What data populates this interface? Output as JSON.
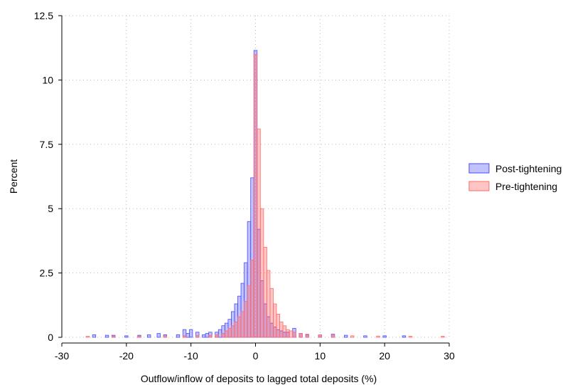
{
  "chart_data": {
    "type": "histogram",
    "xlabel": "Outflow/inflow of deposits to lagged total deposits (%)",
    "ylabel": "Percent",
    "xlim": [
      -30,
      30
    ],
    "ylim": [
      0,
      12.5
    ],
    "x_ticks": [
      "-30",
      "-20",
      "-10",
      "0",
      "10",
      "20",
      "30"
    ],
    "y_ticks": [
      "0",
      "2.5",
      "5",
      "7.5",
      "10",
      "12.5"
    ],
    "grid": true,
    "legend": "right",
    "bin_width": 0.5,
    "series": [
      {
        "name": "Post-tightening",
        "fill": "rgba(80,80,255,0.35)",
        "stroke": "#4a4aff",
        "bins": [
          {
            "x": -25.0,
            "y": 0.1
          },
          {
            "x": -23.0,
            "y": 0.08
          },
          {
            "x": -22.0,
            "y": 0.08
          },
          {
            "x": -20.0,
            "y": 0.06
          },
          {
            "x": -18.0,
            "y": 0.08
          },
          {
            "x": -16.5,
            "y": 0.1
          },
          {
            "x": -15.0,
            "y": 0.15
          },
          {
            "x": -14.0,
            "y": 0.1
          },
          {
            "x": -12.0,
            "y": 0.1
          },
          {
            "x": -11.0,
            "y": 0.3
          },
          {
            "x": -10.5,
            "y": 0.15
          },
          {
            "x": -10.0,
            "y": 0.3
          },
          {
            "x": -9.0,
            "y": 0.2
          },
          {
            "x": -8.0,
            "y": 0.1
          },
          {
            "x": -7.5,
            "y": 0.15
          },
          {
            "x": -7.0,
            "y": 0.2
          },
          {
            "x": -6.0,
            "y": 0.2
          },
          {
            "x": -5.5,
            "y": 0.3
          },
          {
            "x": -5.0,
            "y": 0.45
          },
          {
            "x": -4.5,
            "y": 0.55
          },
          {
            "x": -4.0,
            "y": 0.7
          },
          {
            "x": -3.5,
            "y": 1.0
          },
          {
            "x": -3.0,
            "y": 1.3
          },
          {
            "x": -2.5,
            "y": 1.6
          },
          {
            "x": -2.0,
            "y": 2.1
          },
          {
            "x": -1.5,
            "y": 2.9
          },
          {
            "x": -1.0,
            "y": 4.5
          },
          {
            "x": -0.5,
            "y": 6.2
          },
          {
            "x": 0.0,
            "y": 11.15
          },
          {
            "x": 0.5,
            "y": 4.2
          },
          {
            "x": 1.0,
            "y": 2.2
          },
          {
            "x": 1.5,
            "y": 1.3
          },
          {
            "x": 2.0,
            "y": 0.8
          },
          {
            "x": 2.5,
            "y": 0.55
          },
          {
            "x": 3.0,
            "y": 0.4
          },
          {
            "x": 3.5,
            "y": 0.3
          },
          {
            "x": 4.0,
            "y": 0.25
          },
          {
            "x": 4.5,
            "y": 0.2
          },
          {
            "x": 5.0,
            "y": 0.2
          },
          {
            "x": 6.0,
            "y": 0.35
          },
          {
            "x": 7.0,
            "y": 0.15
          },
          {
            "x": 8.0,
            "y": 0.1
          },
          {
            "x": 10.0,
            "y": 0.1
          },
          {
            "x": 12.0,
            "y": 0.12
          },
          {
            "x": 14.0,
            "y": 0.08
          },
          {
            "x": 17.0,
            "y": 0.06
          },
          {
            "x": 20.0,
            "y": 0.06
          },
          {
            "x": 23.0,
            "y": 0.06
          }
        ]
      },
      {
        "name": "Pre-tightening",
        "fill": "rgba(255,90,90,0.35)",
        "stroke": "#ff6b6b",
        "bins": [
          {
            "x": -26.0,
            "y": 0.04
          },
          {
            "x": -22.0,
            "y": 0.05
          },
          {
            "x": -18.0,
            "y": 0.05
          },
          {
            "x": -14.0,
            "y": 0.06
          },
          {
            "x": -11.0,
            "y": 0.06
          },
          {
            "x": -9.0,
            "y": 0.07
          },
          {
            "x": -7.0,
            "y": 0.08
          },
          {
            "x": -6.0,
            "y": 0.1
          },
          {
            "x": -5.0,
            "y": 0.15
          },
          {
            "x": -4.5,
            "y": 0.25
          },
          {
            "x": -4.0,
            "y": 0.35
          },
          {
            "x": -3.5,
            "y": 0.45
          },
          {
            "x": -3.0,
            "y": 0.6
          },
          {
            "x": -2.5,
            "y": 0.8
          },
          {
            "x": -2.0,
            "y": 1.0
          },
          {
            "x": -1.5,
            "y": 1.4
          },
          {
            "x": -1.0,
            "y": 2.0
          },
          {
            "x": -0.5,
            "y": 3.0
          },
          {
            "x": 0.0,
            "y": 11.0
          },
          {
            "x": 0.5,
            "y": 8.1
          },
          {
            "x": 1.0,
            "y": 5.0
          },
          {
            "x": 1.5,
            "y": 3.5
          },
          {
            "x": 2.0,
            "y": 2.6
          },
          {
            "x": 2.5,
            "y": 1.9
          },
          {
            "x": 3.0,
            "y": 1.3
          },
          {
            "x": 3.5,
            "y": 0.9
          },
          {
            "x": 4.0,
            "y": 0.6
          },
          {
            "x": 4.5,
            "y": 0.45
          },
          {
            "x": 5.0,
            "y": 0.3
          },
          {
            "x": 5.5,
            "y": 0.25
          },
          {
            "x": 6.0,
            "y": 0.2
          },
          {
            "x": 7.0,
            "y": 0.15
          },
          {
            "x": 8.0,
            "y": 0.12
          },
          {
            "x": 10.0,
            "y": 0.1
          },
          {
            "x": 12.0,
            "y": 0.08
          },
          {
            "x": 15.0,
            "y": 0.06
          },
          {
            "x": 19.0,
            "y": 0.05
          },
          {
            "x": 24.0,
            "y": 0.04
          },
          {
            "x": 29.0,
            "y": 0.04
          }
        ]
      }
    ]
  }
}
